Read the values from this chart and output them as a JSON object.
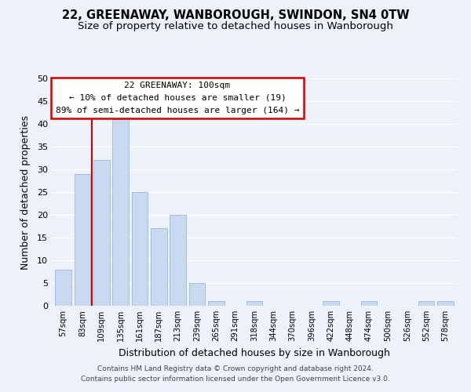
{
  "title": "22, GREENAWAY, WANBOROUGH, SWINDON, SN4 0TW",
  "subtitle": "Size of property relative to detached houses in Wanborough",
  "xlabel": "Distribution of detached houses by size in Wanborough",
  "ylabel": "Number of detached properties",
  "bar_labels": [
    "57sqm",
    "83sqm",
    "109sqm",
    "135sqm",
    "161sqm",
    "187sqm",
    "213sqm",
    "239sqm",
    "265sqm",
    "291sqm",
    "318sqm",
    "344sqm",
    "370sqm",
    "396sqm",
    "422sqm",
    "448sqm",
    "474sqm",
    "500sqm",
    "526sqm",
    "552sqm",
    "578sqm"
  ],
  "bar_values": [
    8,
    29,
    32,
    41,
    25,
    17,
    20,
    5,
    1,
    0,
    1,
    0,
    0,
    0,
    1,
    0,
    1,
    0,
    0,
    1,
    1
  ],
  "bar_color": "#c8d9f0",
  "bar_edge_color": "#9ab8dc",
  "annotation_title": "22 GREENAWAY: 100sqm",
  "annotation_line1": "← 10% of detached houses are smaller (19)",
  "annotation_line2": "89% of semi-detached houses are larger (164) →",
  "annotation_box_color": "#ffffff",
  "annotation_box_edge": "#cc0000",
  "vline_color": "#cc0000",
  "ylim": [
    0,
    50
  ],
  "yticks": [
    0,
    5,
    10,
    15,
    20,
    25,
    30,
    35,
    40,
    45,
    50
  ],
  "footer_line1": "Contains HM Land Registry data © Crown copyright and database right 2024.",
  "footer_line2": "Contains public sector information licensed under the Open Government Licence v3.0.",
  "bg_color": "#edf1f9",
  "grid_color": "#ffffff",
  "title_fontsize": 10.5,
  "subtitle_fontsize": 9.5
}
